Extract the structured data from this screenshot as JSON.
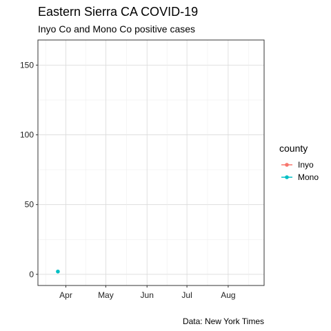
{
  "chart_data": {
    "type": "scatter",
    "title": "Eastern Sierra CA COVID-19",
    "subtitle": "Inyo Co and Mono Co positive cases",
    "caption": "Data: New York Times",
    "xlabel": "",
    "ylabel": "",
    "x_axis": {
      "type": "date",
      "range": [
        "2020-03-11",
        "2020-08-28"
      ],
      "ticks": [
        {
          "date": "2020-04-01",
          "label": "Apr"
        },
        {
          "date": "2020-05-01",
          "label": "May"
        },
        {
          "date": "2020-06-01",
          "label": "Jun"
        },
        {
          "date": "2020-07-01",
          "label": "Jul"
        },
        {
          "date": "2020-08-01",
          "label": "Aug"
        }
      ]
    },
    "y_axis": {
      "range": [
        -8,
        168
      ],
      "ticks": [
        0,
        50,
        100,
        150
      ]
    },
    "grid": true,
    "legend": {
      "title": "county",
      "position": "right",
      "entries": [
        {
          "label": "Inyo",
          "color": "#F8766D"
        },
        {
          "label": "Mono",
          "color": "#00BFC4"
        }
      ]
    },
    "series": [
      {
        "name": "Inyo",
        "color": "#F8766D",
        "points": []
      },
      {
        "name": "Mono",
        "color": "#00BFC4",
        "points": [
          {
            "x": "2020-03-26",
            "y": 2
          }
        ]
      }
    ]
  }
}
